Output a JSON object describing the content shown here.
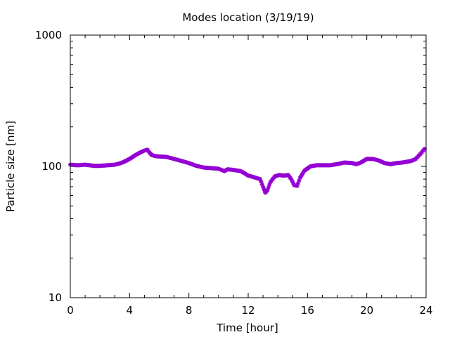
{
  "chart_data": {
    "type": "scatter",
    "title": "Modes location (3/19/19)",
    "xlabel": "Time [hour]",
    "ylabel": "Particle size [nm]",
    "xlim": [
      0,
      24
    ],
    "ylim": [
      10,
      1000
    ],
    "y_scale": "log",
    "x_ticks": [
      0,
      4,
      8,
      12,
      16,
      20,
      24
    ],
    "x_tick_labels": [
      "0",
      "4",
      "8",
      "12",
      "16",
      "20",
      "24"
    ],
    "y_ticks": [
      10,
      100,
      1000
    ],
    "y_tick_labels": [
      "10",
      "100",
      "1000"
    ],
    "grid": false,
    "legend": "none",
    "marker_color": "#9400d3",
    "series": [
      {
        "x": [
          0.0,
          0.5,
          1.0,
          1.3,
          1.6,
          2.0,
          2.5,
          3.0,
          3.3,
          3.6,
          4.0,
          4.4,
          4.8,
          5.0,
          5.2,
          5.35,
          5.5,
          5.7,
          6.0,
          6.5,
          7.0,
          7.5,
          8.0,
          8.5,
          9.0,
          9.5,
          10.0,
          10.2,
          10.4,
          10.6,
          11.0,
          11.5,
          11.8,
          12.0,
          12.2,
          12.5,
          12.8,
          13.0,
          13.15,
          13.3,
          13.5,
          13.8,
          14.1,
          14.4,
          14.7,
          14.9,
          15.1,
          15.3,
          15.5,
          15.8,
          16.2,
          16.6,
          17.0,
          17.5,
          18.0,
          18.5,
          19.0,
          19.3,
          19.6,
          20.0,
          20.4,
          20.8,
          21.2,
          21.6,
          22.0,
          22.4,
          22.8,
          23.0,
          23.3,
          23.6,
          23.9
        ],
        "y": [
          103,
          102,
          103,
          102,
          101,
          101,
          102,
          103,
          105,
          108,
          114,
          122,
          129,
          132,
          134,
          127,
          122,
          120,
          119,
          118,
          114,
          110,
          106,
          101,
          98,
          97,
          96,
          94,
          92,
          95,
          94,
          92,
          88,
          85,
          84,
          82,
          80,
          70,
          63,
          66,
          76,
          84,
          86,
          85,
          86,
          80,
          72,
          71,
          82,
          93,
          100,
          102,
          102,
          102,
          104,
          107,
          106,
          104,
          107,
          114,
          114,
          111,
          106,
          104,
          106,
          107,
          109,
          110,
          114,
          124,
          136
        ]
      }
    ]
  }
}
